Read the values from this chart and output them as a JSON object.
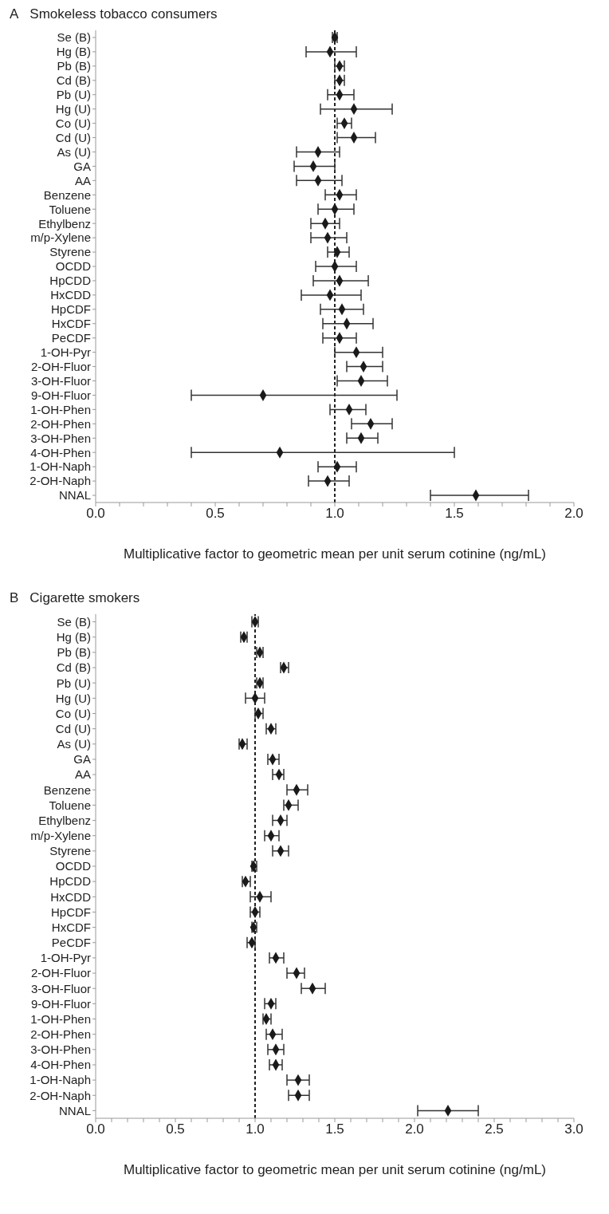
{
  "chart_data": [
    {
      "type": "scatter",
      "title": "Smokeless tobacco consumers",
      "annotations": [
        "A"
      ],
      "xlabel": "Multiplicative factor to geometric mean per unit serum cotinine (ng/mL)",
      "orientation": "horizontal",
      "marker": "diamond",
      "legend": false,
      "grid": false,
      "categories": [
        "Se (B)",
        "Hg (B)",
        "Pb (B)",
        "Cd (B)",
        "Pb (U)",
        "Hg (U)",
        "Co (U)",
        "Cd (U)",
        "As (U)",
        "GA",
        "AA",
        "Benzene",
        "Toluene",
        "Ethylbenz",
        "m/p-Xylene",
        "Styrene",
        "OCDD",
        "HpCDD",
        "HxCDD",
        "HpCDF",
        "HxCDF",
        "PeCDF",
        "1-OH-Pyr",
        "2-OH-Fluor",
        "3-OH-Fluor",
        "9-OH-Fluor",
        "1-OH-Phen",
        "2-OH-Phen",
        "3-OH-Phen",
        "4-OH-Phen",
        "1-OH-Naph",
        "2-OH-Naph",
        "NNAL"
      ],
      "series": [
        {
          "color": "#1a1a1a",
          "values": [
            1.0,
            0.98,
            1.02,
            1.02,
            1.02,
            1.08,
            1.04,
            1.08,
            0.93,
            0.91,
            0.93,
            1.02,
            1.0,
            0.96,
            0.97,
            1.01,
            1.0,
            1.02,
            0.98,
            1.03,
            1.05,
            1.02,
            1.09,
            1.12,
            1.11,
            0.7,
            1.06,
            1.15,
            1.11,
            0.77,
            1.01,
            0.97,
            1.59
          ],
          "errors": [
            [
              0.99,
              1.01
            ],
            [
              0.88,
              1.09
            ],
            [
              1.0,
              1.04
            ],
            [
              1.0,
              1.04
            ],
            [
              0.97,
              1.08
            ],
            [
              0.94,
              1.24
            ],
            [
              1.01,
              1.07
            ],
            [
              1.01,
              1.17
            ],
            [
              0.84,
              1.02
            ],
            [
              0.83,
              1.0
            ],
            [
              0.84,
              1.03
            ],
            [
              0.96,
              1.09
            ],
            [
              0.93,
              1.08
            ],
            [
              0.9,
              1.02
            ],
            [
              0.9,
              1.05
            ],
            [
              0.97,
              1.06
            ],
            [
              0.92,
              1.09
            ],
            [
              0.91,
              1.14
            ],
            [
              0.86,
              1.11
            ],
            [
              0.94,
              1.12
            ],
            [
              0.95,
              1.16
            ],
            [
              0.95,
              1.09
            ],
            [
              1.0,
              1.2
            ],
            [
              1.05,
              1.2
            ],
            [
              1.01,
              1.22
            ],
            [
              0.4,
              1.26
            ],
            [
              0.98,
              1.13
            ],
            [
              1.07,
              1.24
            ],
            [
              1.05,
              1.18
            ],
            [
              0.4,
              1.5
            ],
            [
              0.93,
              1.09
            ],
            [
              0.89,
              1.06
            ],
            [
              1.4,
              1.81
            ]
          ]
        }
      ],
      "xlim": [
        0,
        2
      ],
      "xticks": [
        {
          "value": 0,
          "label": "0.0"
        },
        {
          "value": 0.1,
          "label": null
        },
        {
          "value": 0.2,
          "label": null
        },
        {
          "value": 0.3,
          "label": null
        },
        {
          "value": 0.4,
          "label": null
        },
        {
          "value": 0.5,
          "label": "0.5"
        },
        {
          "value": 0.6,
          "label": null
        },
        {
          "value": 0.7,
          "label": null
        },
        {
          "value": 0.8,
          "label": null
        },
        {
          "value": 0.9,
          "label": null
        },
        {
          "value": 1,
          "label": "1.0"
        },
        {
          "value": 1.1,
          "label": null
        },
        {
          "value": 1.2,
          "label": null
        },
        {
          "value": 1.3,
          "label": null
        },
        {
          "value": 1.4,
          "label": null
        },
        {
          "value": 1.5,
          "label": "1.5"
        },
        {
          "value": 1.6,
          "label": null
        },
        {
          "value": 1.7,
          "label": null
        },
        {
          "value": 1.8,
          "label": null
        },
        {
          "value": 1.9,
          "label": null
        },
        {
          "value": 2,
          "label": "2.0"
        }
      ],
      "ref_lines": [
        {
          "axis": "x",
          "value": 1,
          "label": null,
          "color": "#222222",
          "line_style": "dashed"
        }
      ]
    },
    {
      "type": "scatter",
      "title": "Cigarette smokers",
      "annotations": [
        "B"
      ],
      "xlabel": "Multiplicative factor to geometric mean per unit serum cotinine (ng/mL)",
      "orientation": "horizontal",
      "marker": "diamond",
      "legend": false,
      "grid": false,
      "categories": [
        "Se (B)",
        "Hg (B)",
        "Pb (B)",
        "Cd (B)",
        "Pb (U)",
        "Hg (U)",
        "Co (U)",
        "Cd (U)",
        "As (U)",
        "GA",
        "AA",
        "Benzene",
        "Toluene",
        "Ethylbenz",
        "m/p-Xylene",
        "Styrene",
        "OCDD",
        "HpCDD",
        "HxCDD",
        "HpCDF",
        "HxCDF",
        "PeCDF",
        "1-OH-Pyr",
        "2-OH-Fluor",
        "3-OH-Fluor",
        "9-OH-Fluor",
        "1-OH-Phen",
        "2-OH-Phen",
        "3-OH-Phen",
        "4-OH-Phen",
        "1-OH-Naph",
        "2-OH-Naph",
        "NNAL"
      ],
      "series": [
        {
          "color": "#1a1a1a",
          "values": [
            1.0,
            0.93,
            1.03,
            1.18,
            1.03,
            1.0,
            1.02,
            1.1,
            0.92,
            1.11,
            1.15,
            1.26,
            1.21,
            1.16,
            1.1,
            1.16,
            0.99,
            0.94,
            1.03,
            1.0,
            0.99,
            0.98,
            1.13,
            1.26,
            1.36,
            1.1,
            1.07,
            1.11,
            1.13,
            1.13,
            1.27,
            1.27,
            2.21
          ],
          "errors": [
            [
              0.98,
              1.02
            ],
            [
              0.91,
              0.95
            ],
            [
              1.01,
              1.05
            ],
            [
              1.16,
              1.21
            ],
            [
              1.01,
              1.05
            ],
            [
              0.94,
              1.06
            ],
            [
              1.0,
              1.05
            ],
            [
              1.07,
              1.13
            ],
            [
              0.9,
              0.95
            ],
            [
              1.08,
              1.15
            ],
            [
              1.11,
              1.18
            ],
            [
              1.2,
              1.33
            ],
            [
              1.18,
              1.27
            ],
            [
              1.11,
              1.2
            ],
            [
              1.06,
              1.15
            ],
            [
              1.11,
              1.21
            ],
            [
              0.98,
              1.01
            ],
            [
              0.92,
              0.97
            ],
            [
              0.97,
              1.1
            ],
            [
              0.97,
              1.03
            ],
            [
              0.98,
              1.01
            ],
            [
              0.95,
              1.0
            ],
            [
              1.09,
              1.18
            ],
            [
              1.2,
              1.31
            ],
            [
              1.29,
              1.44
            ],
            [
              1.06,
              1.13
            ],
            [
              1.05,
              1.1
            ],
            [
              1.07,
              1.17
            ],
            [
              1.08,
              1.18
            ],
            [
              1.09,
              1.17
            ],
            [
              1.2,
              1.34
            ],
            [
              1.21,
              1.34
            ],
            [
              2.02,
              2.4
            ]
          ]
        }
      ],
      "xlim": [
        0,
        3
      ],
      "xticks": [
        {
          "value": 0,
          "label": "0.0"
        },
        {
          "value": 0.1,
          "label": null
        },
        {
          "value": 0.2,
          "label": null
        },
        {
          "value": 0.3,
          "label": null
        },
        {
          "value": 0.4,
          "label": null
        },
        {
          "value": 0.5,
          "label": "0.5"
        },
        {
          "value": 0.6,
          "label": null
        },
        {
          "value": 0.7,
          "label": null
        },
        {
          "value": 0.8,
          "label": null
        },
        {
          "value": 0.9,
          "label": null
        },
        {
          "value": 1,
          "label": "1.0"
        },
        {
          "value": 1.1,
          "label": null
        },
        {
          "value": 1.2,
          "label": null
        },
        {
          "value": 1.3,
          "label": null
        },
        {
          "value": 1.4,
          "label": null
        },
        {
          "value": 1.5,
          "label": "1.5"
        },
        {
          "value": 1.6,
          "label": null
        },
        {
          "value": 1.7,
          "label": null
        },
        {
          "value": 1.8,
          "label": null
        },
        {
          "value": 1.9,
          "label": null
        },
        {
          "value": 2,
          "label": "2.0"
        },
        {
          "value": 2.1,
          "label": null
        },
        {
          "value": 2.2,
          "label": null
        },
        {
          "value": 2.3,
          "label": null
        },
        {
          "value": 2.4,
          "label": null
        },
        {
          "value": 2.5,
          "label": "2.5"
        },
        {
          "value": 2.6,
          "label": null
        },
        {
          "value": 2.7,
          "label": null
        },
        {
          "value": 2.8,
          "label": null
        },
        {
          "value": 2.9,
          "label": null
        },
        {
          "value": 3,
          "label": "3.0"
        }
      ],
      "ref_lines": [
        {
          "axis": "x",
          "value": 1,
          "label": null,
          "color": "#222222",
          "line_style": "dashed"
        }
      ]
    }
  ]
}
